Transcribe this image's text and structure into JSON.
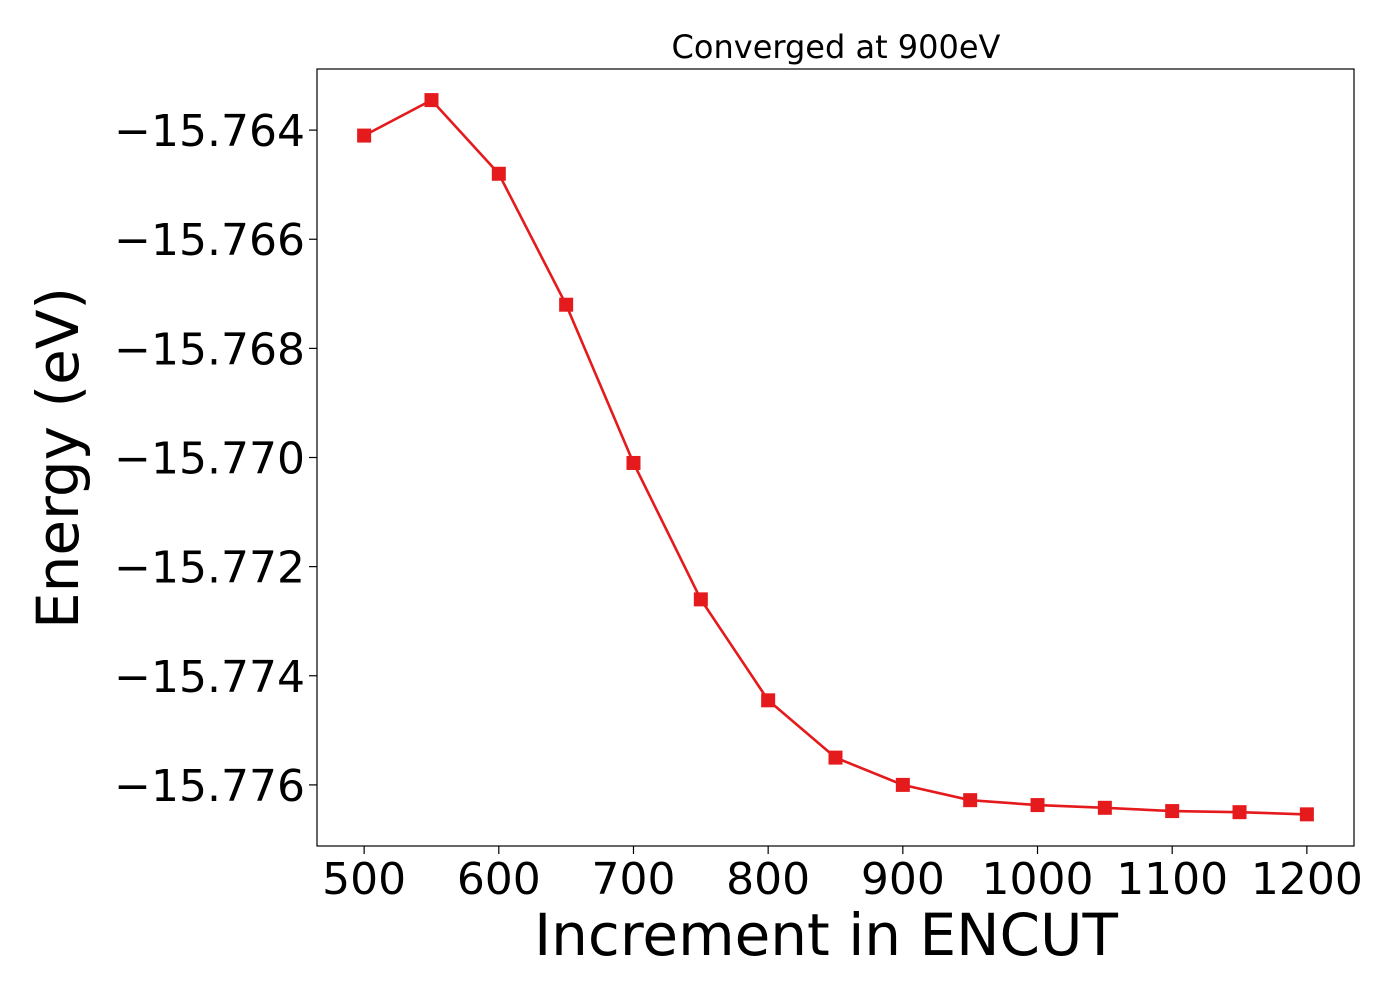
{
  "chart_data": {
    "type": "line",
    "title": "Converged at 900eV",
    "xlabel": "Increment in ENCUT",
    "ylabel": "Energy (eV)",
    "xlim": [
      465,
      1235
    ],
    "ylim": [
      -15.77712,
      -15.76288
    ],
    "x_ticks": [
      500,
      600,
      700,
      800,
      900,
      1000,
      1100,
      1200
    ],
    "x_tick_labels": [
      "500",
      "600",
      "700",
      "800",
      "900",
      "1000",
      "1100",
      "1200"
    ],
    "y_ticks": [
      -15.764,
      -15.766,
      -15.768,
      -15.77,
      -15.772,
      -15.774,
      -15.776
    ],
    "y_tick_labels": [
      "−15.764",
      "−15.766",
      "−15.768",
      "−15.770",
      "−15.772",
      "−15.774",
      "−15.776"
    ],
    "grid": false,
    "series": [
      {
        "name": "Energy",
        "color": "#e41a1c",
        "marker": "square",
        "x": [
          500,
          550,
          600,
          650,
          700,
          750,
          800,
          850,
          900,
          950,
          1000,
          1050,
          1100,
          1150,
          1200
        ],
        "y": [
          -15.7641,
          -15.76345,
          -15.7648,
          -15.7672,
          -15.7701,
          -15.7726,
          -15.77445,
          -15.7755,
          -15.776,
          -15.77628,
          -15.77637,
          -15.77642,
          -15.77648,
          -15.7765,
          -15.77654
        ]
      }
    ]
  }
}
